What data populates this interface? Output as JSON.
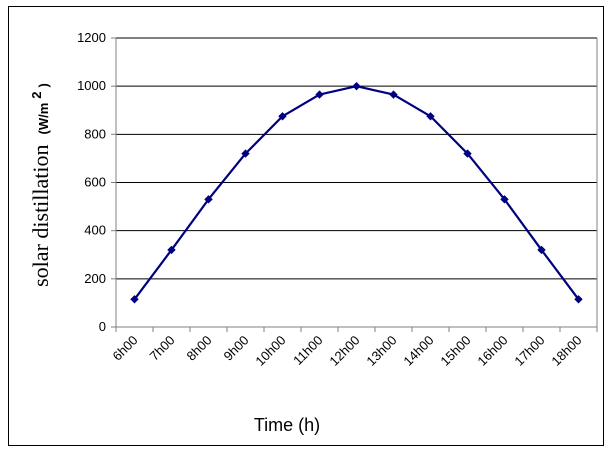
{
  "chart_data": {
    "type": "line",
    "title": "",
    "xlabel": "Time (h)",
    "ylabel": "solar distillation",
    "ylabel_unit": "(W/m",
    "ylabel_unit_sup": "2",
    "ylabel_unit_close": ")",
    "categories": [
      "6h00",
      "7h00",
      "8h00",
      "9h00",
      "10h00",
      "11h00",
      "12h00",
      "13h00",
      "14h00",
      "15h00",
      "16h00",
      "17h00",
      "18h00"
    ],
    "series": [
      {
        "values": [
          115,
          320,
          530,
          720,
          875,
          965,
          1000,
          965,
          875,
          720,
          530,
          320,
          115
        ]
      }
    ],
    "ylim": [
      0,
      1200
    ],
    "yticks": [
      0,
      200,
      400,
      600,
      800,
      1000,
      1200
    ],
    "grid": "horizontal",
    "legend": "none",
    "colors": {
      "line": "#000080",
      "marker": "#000080",
      "grid": "#000000",
      "axis": "#808080"
    }
  }
}
